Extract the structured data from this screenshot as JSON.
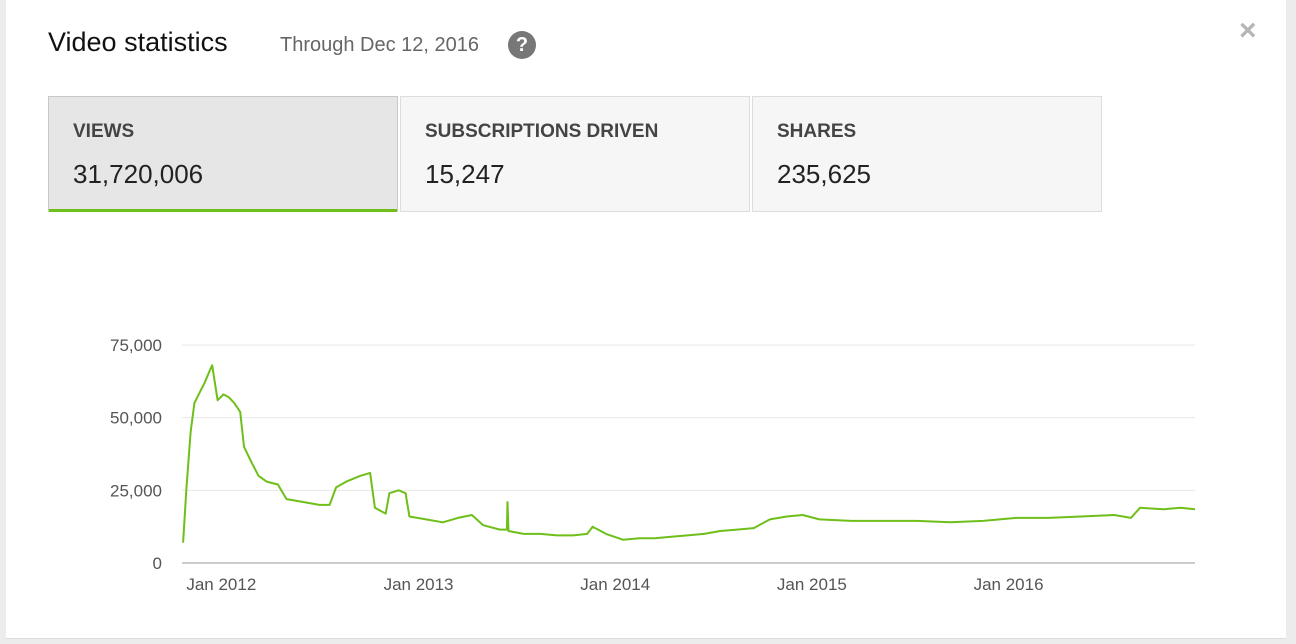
{
  "header": {
    "title": "Video statistics",
    "through": "Through Dec 12, 2016",
    "help_icon": "?",
    "close_icon": "×"
  },
  "tabs": [
    {
      "label": "VIEWS",
      "value": "31,720,006",
      "active": true
    },
    {
      "label": "SUBSCRIPTIONS DRIVEN",
      "value": "15,247",
      "active": false
    },
    {
      "label": "SHARES",
      "value": "235,625",
      "active": false
    }
  ],
  "chart_data": {
    "type": "line",
    "line_color": "#6fbf1a",
    "ylim": [
      0,
      75000
    ],
    "yticks": [
      "0",
      "25,000",
      "50,000",
      "75,000"
    ],
    "ytick_values": [
      0,
      25000,
      50000,
      75000
    ],
    "xticks": [
      "Jan 2012",
      "Jan 2013",
      "Jan 2014",
      "Jan 2015",
      "Jan 2016"
    ],
    "xtick_dates": [
      "2012-01-01",
      "2013-01-01",
      "2014-01-01",
      "2015-01-01",
      "2016-01-01"
    ],
    "xlim": [
      "2011-10-20",
      "2016-12-12"
    ],
    "grid": true,
    "series": [
      {
        "x": [
          "2011-10-22",
          "2011-10-28",
          "2011-11-05",
          "2011-11-12",
          "2011-11-20",
          "2011-12-01",
          "2011-12-10",
          "2011-12-15",
          "2011-12-25",
          "2012-01-05",
          "2012-01-15",
          "2012-01-25",
          "2012-02-05",
          "2012-02-12",
          "2012-02-25",
          "2012-03-10",
          "2012-03-25",
          "2012-04-15",
          "2012-05-01",
          "2012-06-01",
          "2012-07-01",
          "2012-07-20",
          "2012-08-01",
          "2012-08-20",
          "2012-09-15",
          "2012-10-03",
          "2012-10-12",
          "2012-11-01",
          "2012-11-08",
          "2012-11-25",
          "2012-12-08",
          "2012-12-15",
          "2013-01-15",
          "2013-02-15",
          "2013-03-15",
          "2013-04-10",
          "2013-05-01",
          "2013-06-01",
          "2013-06-14",
          "2013-06-15",
          "2013-06-17",
          "2013-07-15",
          "2013-08-15",
          "2013-09-15",
          "2013-10-15",
          "2013-11-10",
          "2013-11-20",
          "2013-12-15",
          "2014-01-15",
          "2014-02-15",
          "2014-03-15",
          "2014-04-15",
          "2014-05-15",
          "2014-06-15",
          "2014-07-15",
          "2014-08-15",
          "2014-09-15",
          "2014-10-15",
          "2014-11-15",
          "2014-12-15",
          "2015-01-15",
          "2015-03-15",
          "2015-05-15",
          "2015-07-15",
          "2015-09-15",
          "2015-11-15",
          "2016-01-15",
          "2016-03-15",
          "2016-05-15",
          "2016-07-15",
          "2016-08-15",
          "2016-09-01",
          "2016-10-15",
          "2016-11-15",
          "2016-12-12"
        ],
        "values": [
          7000,
          25000,
          45000,
          55000,
          58000,
          62000,
          66000,
          68000,
          56000,
          58000,
          57000,
          55000,
          52000,
          40000,
          35000,
          30000,
          28000,
          27000,
          22000,
          21000,
          20000,
          20000,
          26000,
          28000,
          30000,
          31000,
          19000,
          17000,
          24000,
          25000,
          24000,
          16000,
          15000,
          14000,
          15500,
          16500,
          13000,
          11500,
          11500,
          21000,
          11000,
          10000,
          10000,
          9500,
          9500,
          10000,
          12500,
          10000,
          8000,
          8500,
          8500,
          9000,
          9500,
          10000,
          11000,
          11500,
          12000,
          15000,
          16000,
          16500,
          15000,
          14500,
          14500,
          14500,
          14000,
          14500,
          15500,
          15500,
          16000,
          16500,
          15500,
          19000,
          18500,
          19000,
          18500
        ]
      }
    ]
  }
}
